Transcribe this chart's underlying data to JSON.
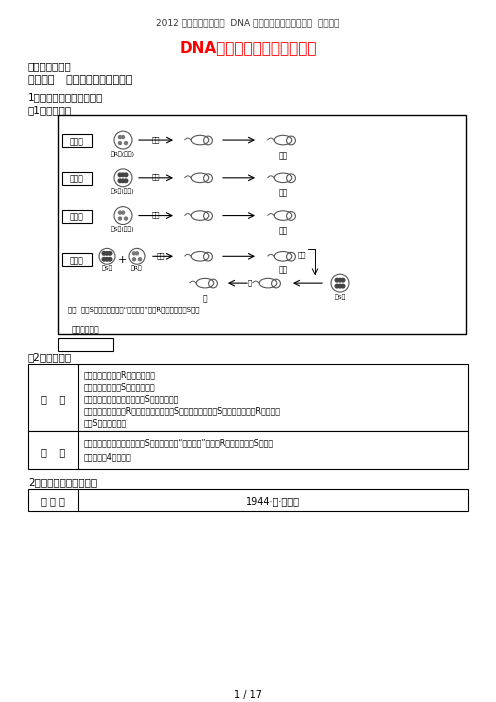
{
  "page_title_top": "2012 高三生物一轮复习  DNA 是主要的遗传物质导学案  新人教版",
  "main_title": "DNA是主要的遗传物质导学案",
  "section_tag": "【重难点突破】",
  "key_point": "重难点一   肺炎双球菌的转化实验",
  "sub1": "1．格里菲思体内转化实验",
  "sub1_1": "（1）实验过程",
  "diagram_groups": [
    "第一组",
    "第二组",
    "第三组",
    "第四组"
  ],
  "diagram_bacteria": [
    "活R型(无毒)",
    "活S型(有毒)",
    "歿S型(加热)",
    "歿S型  活R型"
  ],
  "diagram_actions": [
    "注射",
    "注射",
    "注射",
    "注射"
  ],
  "diagram_results": [
    "健康",
    "死亡",
    "健康",
    "死亡"
  ],
  "diagram_note": "结论  在歿S细菌中存在某种“转化因子”，使R型细菌转化成S细菌",
  "diagram_label": "格里菲思实验",
  "sub1_2": "（2）实验结论",
  "table1_col1": "分    析",
  "table1_col2_lines": [
    "第一组结果说明：R型细菌无毒性",
    "第二组结果说明：S型细菌有毒性",
    "第三组结果说明：加热杀死的S型细菌已失活",
    "第四组结果证明：有R型无毒细菌已转化为S型有毒细菌，说明S型细菌内含有使R型细菌转",
    "化为S型细菌的物质"
  ],
  "table2_col1": "结    论",
  "table2_col2_lines": [
    "第四组实验中，已加热杀死的S型细菌内含有“转化因子”，促使R型细菌转化为S型细菌",
    "（主要通过4组证明）"
  ],
  "sub2": "2．艾弗里体外转化实验",
  "table3_col1": "研 究 人",
  "table3_col2": "1944·美·艾弗里",
  "page_num": "1 / 17",
  "bg_color": "#ffffff",
  "text_color": "#000000",
  "title_color": "#ff0000",
  "box_color": "#000000"
}
